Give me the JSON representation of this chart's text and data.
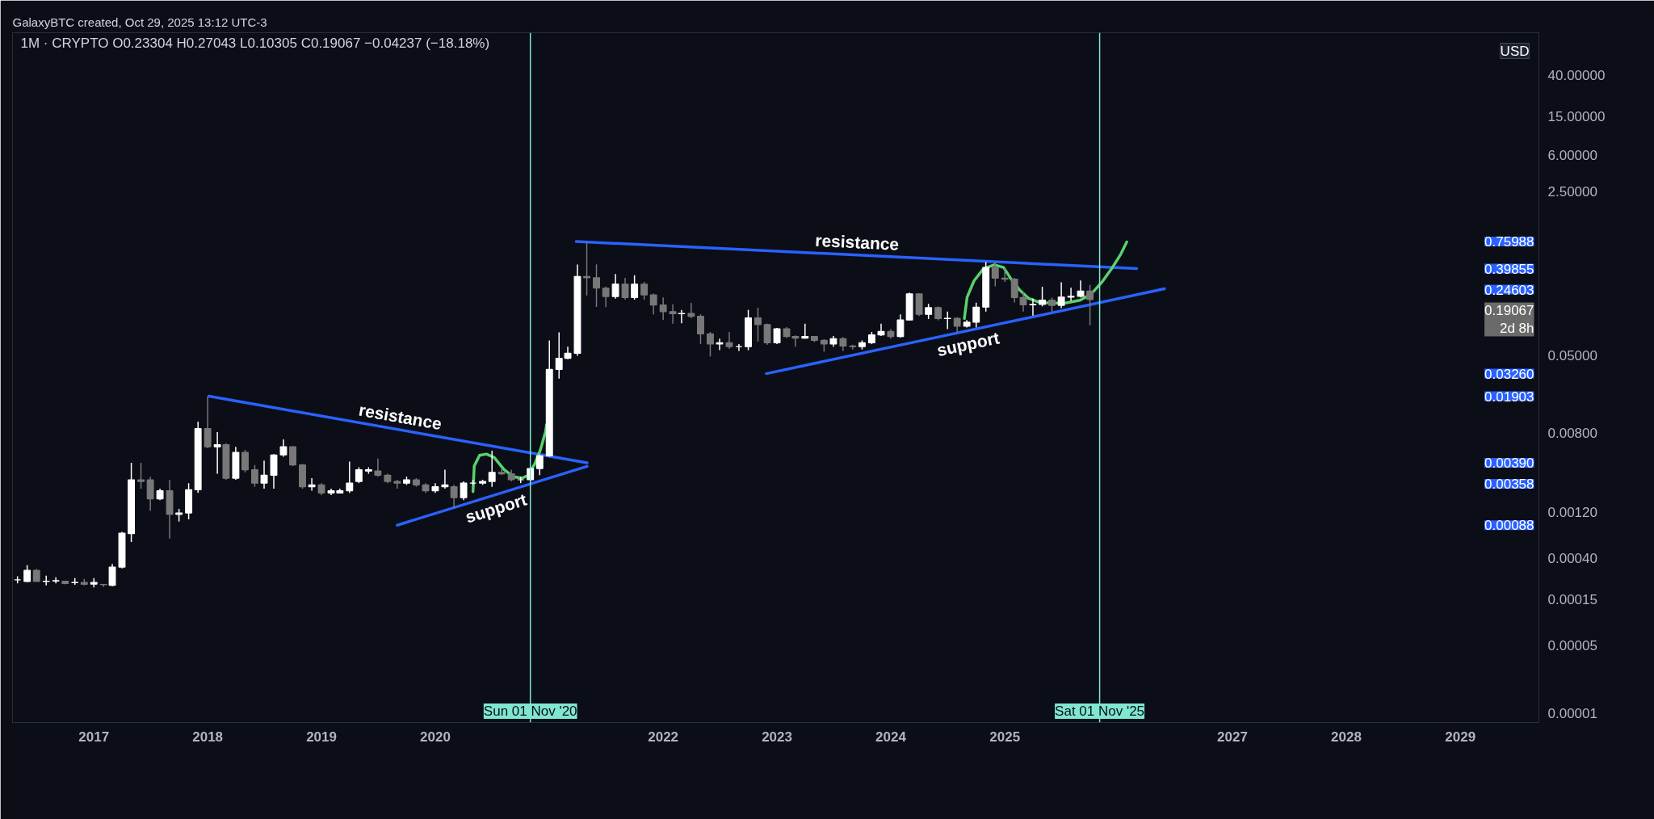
{
  "chart_data": {
    "type": "candlestick",
    "title": "1M · CRYPTO  O0.23304  H0.27043  L0.10305  C0.19067  −0.04237 (−18.18%)",
    "annotations": [
      "GalaxyBTC created, Oct 29, 2025 13:12 UTC-3",
      "USD",
      "0.75988",
      "0.39855",
      "0.24603",
      "0.19067\n2d 8h",
      "0.03260",
      "0.01903",
      "0.00390",
      "0.00358",
      "0.00088"
    ],
    "x": [
      "2016-05",
      "2016-06",
      "2016-07",
      "2016-08",
      "2016-09",
      "2016-10",
      "2016-11",
      "2016-12",
      "2017-01",
      "2017-02",
      "2017-03",
      "2017-04",
      "2017-05",
      "2017-06",
      "2017-07",
      "2017-08",
      "2017-09",
      "2017-10",
      "2017-11",
      "2017-12",
      "2018-01",
      "2018-02",
      "2018-03",
      "2018-04",
      "2018-05",
      "2018-06",
      "2018-07",
      "2018-08",
      "2018-09",
      "2018-10",
      "2018-11",
      "2018-12",
      "2019-01",
      "2019-02",
      "2019-03",
      "2019-04",
      "2019-05",
      "2019-06",
      "2019-07",
      "2019-08",
      "2019-09",
      "2019-10",
      "2019-11",
      "2019-12",
      "2020-01",
      "2020-02",
      "2020-03",
      "2020-04",
      "2020-05",
      "2020-06",
      "2020-07",
      "2020-08",
      "2020-09",
      "2020-10",
      "2020-11",
      "2020-12",
      "2021-01",
      "2021-02",
      "2021-03",
      "2021-04",
      "2021-05",
      "2021-06",
      "2021-07",
      "2021-08",
      "2021-09",
      "2021-10",
      "2021-11",
      "2021-12",
      "2022-01",
      "2022-02",
      "2022-03",
      "2022-04",
      "2022-05",
      "2022-06",
      "2022-07",
      "2022-08",
      "2022-09",
      "2022-10",
      "2022-11",
      "2022-12",
      "2023-01",
      "2023-02",
      "2023-03",
      "2023-04",
      "2023-05",
      "2023-06",
      "2023-07",
      "2023-08",
      "2023-09",
      "2023-10",
      "2023-11",
      "2023-12",
      "2024-01",
      "2024-02",
      "2024-03",
      "2024-04",
      "2024-05",
      "2024-06",
      "2024-07",
      "2024-08",
      "2024-09",
      "2024-10",
      "2024-11",
      "2024-12",
      "2025-01",
      "2025-02",
      "2025-03",
      "2025-04",
      "2025-05",
      "2025-06",
      "2025-07",
      "2025-08",
      "2025-09",
      "2025-10"
    ],
    "ohlc": [
      [
        0.00024,
        0.00026,
        0.00022,
        0.00024
      ],
      [
        0.00023,
        0.00034,
        0.000226,
        0.0003
      ],
      [
        0.0003,
        0.00031,
        0.00023,
        0.00023
      ],
      [
        0.00023,
        0.000265,
        0.00021,
        0.000232
      ],
      [
        0.000233,
        0.000255,
        0.00022,
        0.000235
      ],
      [
        0.000232,
        0.000235,
        0.000215,
        0.00022
      ],
      [
        0.000224,
        0.00025,
        0.000213,
        0.000225
      ],
      [
        0.000225,
        0.000245,
        0.00021,
        0.000215
      ],
      [
        0.000216,
        0.00025,
        0.0002,
        0.000225
      ],
      [
        0.000215,
        0.000217,
        0.000203,
        0.000213
      ],
      [
        0.00021,
        0.00035,
        0.000205,
        0.000325
      ],
      [
        0.000325,
        0.00075,
        0.000315,
        0.00073
      ],
      [
        0.00072,
        0.0039,
        0.00059,
        0.0026
      ],
      [
        0.0026,
        0.0039,
        0.0021,
        0.0025
      ],
      [
        0.0026,
        0.0028,
        0.00124,
        0.00165
      ],
      [
        0.00165,
        0.0021,
        0.0016,
        0.002
      ],
      [
        0.002,
        0.0026,
        0.00064,
        0.00114
      ],
      [
        0.00114,
        0.0013,
        0.00096,
        0.00118
      ],
      [
        0.00118,
        0.0024,
        0.00101,
        0.00205
      ],
      [
        0.00205,
        0.0104,
        0.0019,
        0.0088
      ],
      [
        0.0088,
        0.019,
        0.0055,
        0.0057
      ],
      [
        0.0057,
        0.0081,
        0.003,
        0.006
      ],
      [
        0.006,
        0.0062,
        0.0026,
        0.0027
      ],
      [
        0.0027,
        0.0057,
        0.0026,
        0.005
      ],
      [
        0.005,
        0.0053,
        0.0031,
        0.0033
      ],
      [
        0.0033,
        0.0037,
        0.0022,
        0.0024
      ],
      [
        0.0024,
        0.0041,
        0.0021,
        0.0029
      ],
      [
        0.0029,
        0.0048,
        0.0021,
        0.0047
      ],
      [
        0.0047,
        0.0068,
        0.0045,
        0.0057
      ],
      [
        0.0057,
        0.0058,
        0.0036,
        0.0037
      ],
      [
        0.0037,
        0.0038,
        0.0021,
        0.0022
      ],
      [
        0.0022,
        0.0027,
        0.002,
        0.0023
      ],
      [
        0.0023,
        0.0024,
        0.0018,
        0.0019
      ],
      [
        0.0019,
        0.0021,
        0.0018,
        0.002
      ],
      [
        0.0019,
        0.0021,
        0.0019,
        0.002
      ],
      [
        0.002,
        0.004,
        0.0019,
        0.0024
      ],
      [
        0.0025,
        0.0035,
        0.0024,
        0.0033
      ],
      [
        0.0032,
        0.0035,
        0.003,
        0.0033
      ],
      [
        0.0032,
        0.0043,
        0.0028,
        0.0029
      ],
      [
        0.0029,
        0.003,
        0.0024,
        0.0025
      ],
      [
        0.0025,
        0.0026,
        0.0021,
        0.0024
      ],
      [
        0.0024,
        0.0028,
        0.0023,
        0.0026
      ],
      [
        0.0026,
        0.0027,
        0.0022,
        0.0023
      ],
      [
        0.0023,
        0.0024,
        0.0019,
        0.002
      ],
      [
        0.002,
        0.0024,
        0.0019,
        0.0022
      ],
      [
        0.0022,
        0.0033,
        0.0021,
        0.0023
      ],
      [
        0.0022,
        0.0023,
        0.0013,
        0.0017
      ],
      [
        0.0017,
        0.0025,
        0.0016,
        0.0024
      ],
      [
        0.0024,
        0.0026,
        0.0023,
        0.0024
      ],
      [
        0.0024,
        0.0026,
        0.0023,
        0.0025
      ],
      [
        0.0025,
        0.0052,
        0.0022,
        0.0031
      ],
      [
        0.0031,
        0.0034,
        0.0029,
        0.003
      ],
      [
        0.003,
        0.0033,
        0.0025,
        0.0026
      ],
      [
        0.0026,
        0.0028,
        0.0024,
        0.0026
      ],
      [
        0.0026,
        0.0035,
        0.0025,
        0.0034
      ],
      [
        0.0034,
        0.0047,
        0.0029,
        0.0046
      ],
      [
        0.0046,
        0.072,
        0.0045,
        0.036
      ],
      [
        0.036,
        0.087,
        0.029,
        0.047
      ],
      [
        0.047,
        0.062,
        0.046,
        0.053
      ],
      [
        0.053,
        0.44,
        0.05,
        0.33
      ],
      [
        0.33,
        0.75,
        0.21,
        0.32
      ],
      [
        0.32,
        0.44,
        0.16,
        0.25
      ],
      [
        0.25,
        0.26,
        0.159,
        0.205
      ],
      [
        0.205,
        0.35,
        0.195,
        0.275
      ],
      [
        0.275,
        0.32,
        0.19,
        0.2
      ],
      [
        0.2,
        0.34,
        0.19,
        0.275
      ],
      [
        0.275,
        0.29,
        0.19,
        0.213
      ],
      [
        0.213,
        0.22,
        0.134,
        0.167
      ],
      [
        0.167,
        0.2,
        0.117,
        0.143
      ],
      [
        0.143,
        0.17,
        0.107,
        0.136
      ],
      [
        0.136,
        0.149,
        0.108,
        0.137
      ],
      [
        0.137,
        0.176,
        0.122,
        0.128
      ],
      [
        0.128,
        0.134,
        0.066,
        0.084
      ],
      [
        0.084,
        0.088,
        0.049,
        0.066
      ],
      [
        0.066,
        0.075,
        0.057,
        0.068
      ],
      [
        0.068,
        0.088,
        0.059,
        0.062
      ],
      [
        0.062,
        0.066,
        0.056,
        0.062
      ],
      [
        0.062,
        0.149,
        0.057,
        0.123
      ],
      [
        0.123,
        0.157,
        0.07,
        0.105
      ],
      [
        0.105,
        0.107,
        0.065,
        0.068
      ],
      [
        0.068,
        0.097,
        0.066,
        0.095
      ],
      [
        0.095,
        0.099,
        0.076,
        0.079
      ],
      [
        0.079,
        0.081,
        0.062,
        0.076
      ],
      [
        0.076,
        0.107,
        0.075,
        0.079
      ],
      [
        0.079,
        0.08,
        0.069,
        0.072
      ],
      [
        0.072,
        0.074,
        0.055,
        0.066
      ],
      [
        0.066,
        0.08,
        0.062,
        0.075
      ],
      [
        0.075,
        0.078,
        0.056,
        0.063
      ],
      [
        0.063,
        0.065,
        0.058,
        0.062
      ],
      [
        0.062,
        0.072,
        0.058,
        0.068
      ],
      [
        0.068,
        0.088,
        0.066,
        0.082
      ],
      [
        0.082,
        0.107,
        0.08,
        0.089
      ],
      [
        0.089,
        0.094,
        0.075,
        0.079
      ],
      [
        0.079,
        0.134,
        0.077,
        0.117
      ],
      [
        0.117,
        0.225,
        0.115,
        0.218
      ],
      [
        0.218,
        0.222,
        0.129,
        0.134
      ],
      [
        0.134,
        0.172,
        0.12,
        0.157
      ],
      [
        0.157,
        0.162,
        0.116,
        0.121
      ],
      [
        0.121,
        0.143,
        0.094,
        0.122
      ],
      [
        0.122,
        0.125,
        0.088,
        0.101
      ],
      [
        0.101,
        0.117,
        0.098,
        0.111
      ],
      [
        0.111,
        0.177,
        0.098,
        0.159
      ],
      [
        0.159,
        0.465,
        0.143,
        0.409
      ],
      [
        0.409,
        0.465,
        0.261,
        0.317
      ],
      [
        0.317,
        0.4,
        0.29,
        0.31
      ],
      [
        0.31,
        0.32,
        0.178,
        0.2
      ],
      [
        0.2,
        0.23,
        0.143,
        0.168
      ],
      [
        0.168,
        0.196,
        0.13,
        0.17
      ],
      [
        0.17,
        0.258,
        0.162,
        0.188
      ],
      [
        0.188,
        0.2,
        0.143,
        0.166
      ],
      [
        0.166,
        0.288,
        0.155,
        0.202
      ],
      [
        0.202,
        0.253,
        0.185,
        0.206
      ],
      [
        0.206,
        0.3,
        0.2,
        0.233
      ],
      [
        0.23304,
        0.27043,
        0.10305,
        0.19067
      ]
    ],
    "colors": [
      "#ffffff",
      "#ffffff",
      "#787878",
      "#ffffff",
      "#ffffff",
      "#787878",
      "#ffffff",
      "#787878",
      "#ffffff",
      "#787878",
      "#ffffff",
      "#ffffff",
      "#ffffff",
      "#787878",
      "#787878",
      "#ffffff",
      "#787878",
      "#ffffff",
      "#ffffff",
      "#ffffff",
      "#787878",
      "#ffffff",
      "#787878",
      "#ffffff",
      "#787878",
      "#787878",
      "#ffffff",
      "#ffffff",
      "#ffffff",
      "#787878",
      "#787878",
      "#ffffff",
      "#787878",
      "#ffffff",
      "#ffffff",
      "#ffffff",
      "#ffffff",
      "#ffffff",
      "#787878",
      "#787878",
      "#787878",
      "#ffffff",
      "#787878",
      "#787878",
      "#ffffff",
      "#ffffff",
      "#787878",
      "#ffffff",
      "#ffffff",
      "#ffffff",
      "#ffffff",
      "#787878",
      "#787878",
      "#ffffff",
      "#ffffff",
      "#ffffff",
      "#ffffff",
      "#ffffff",
      "#ffffff",
      "#ffffff",
      "#787878",
      "#787878",
      "#787878",
      "#ffffff",
      "#787878",
      "#ffffff",
      "#787878",
      "#787878",
      "#787878",
      "#787878",
      "#ffffff",
      "#787878",
      "#787878",
      "#787878",
      "#ffffff",
      "#787878",
      "#ffffff",
      "#ffffff",
      "#787878",
      "#787878",
      "#ffffff",
      "#787878",
      "#787878",
      "#ffffff",
      "#787878",
      "#787878",
      "#ffffff",
      "#787878",
      "#787878",
      "#ffffff",
      "#ffffff",
      "#ffffff",
      "#787878",
      "#ffffff",
      "#ffffff",
      "#787878",
      "#ffffff",
      "#787878",
      "#ffffff",
      "#787878",
      "#ffffff",
      "#ffffff",
      "#ffffff",
      "#787878",
      "#787878",
      "#787878",
      "#787878",
      "#ffffff",
      "#ffffff",
      "#787878",
      "#ffffff",
      "#ffffff",
      "#ffffff",
      "#787878"
    ],
    "series": [
      {
        "type": "line",
        "name": "resistance",
        "color": "#2962ff",
        "x": [
          "2018-01-05",
          "2021-05-02"
        ],
        "values": [
          0.01903,
          0.0039
        ]
      },
      {
        "type": "line",
        "name": "support",
        "color": "#2962ff",
        "x": [
          "2019-09-01",
          "2021-05-02"
        ],
        "values": [
          0.00088,
          0.00358
        ]
      },
      {
        "type": "line",
        "name": "resistance",
        "color": "#2962ff",
        "x": [
          "2021-03-28",
          "2026-02-28"
        ],
        "values": [
          0.75988,
          0.39855
        ]
      },
      {
        "type": "line",
        "name": "support",
        "color": "#2962ff",
        "x": [
          "2022-11-28",
          "2026-05-28"
        ],
        "values": [
          0.0326,
          0.24603
        ]
      },
      {
        "type": "line",
        "color": "#58d26a",
        "x": [
          "2020-05-01",
          "2020-05-05",
          "2020-05-22",
          "2020-06-13",
          "2020-07-08",
          "2020-08-08",
          "2020-09-08",
          "2020-10-04",
          "2020-10-25",
          "2020-11-16",
          "2020-12-03",
          "2020-12-20",
          "2020-12-23"
        ],
        "values": [
          0.00196,
          0.0036,
          0.00465,
          0.0048,
          0.00442,
          0.00333,
          0.00279,
          0.0027,
          0.00288,
          0.00384,
          0.00528,
          0.00826,
          0.0097
        ]
      },
      {
        "type": "line",
        "color": "#58d26a",
        "x": [
          "2024-08-24",
          "2024-09-02",
          "2024-09-24",
          "2024-10-24",
          "2024-11-28",
          "2024-12-28",
          "2025-01-19",
          "2025-02-18",
          "2025-03-18",
          "2025-04-22",
          "2025-06-04",
          "2025-07-17",
          "2025-08-30",
          "2025-10-04",
          "2025-11-08",
          "2025-12-12",
          "2026-01-08",
          "2026-01-27"
        ],
        "values": [
          0.121,
          0.202,
          0.297,
          0.396,
          0.436,
          0.409,
          0.317,
          0.238,
          0.196,
          0.178,
          0.175,
          0.176,
          0.187,
          0.216,
          0.288,
          0.409,
          0.563,
          0.752
        ]
      }
    ],
    "ref_lines": [
      {
        "axis": "x",
        "value": "2020-11-01",
        "label": "Sun 01 Nov '20",
        "color": "#7fe7cf"
      },
      {
        "axis": "x",
        "value": "2025-11-01",
        "label": "Sat 01 Nov '25",
        "color": "#7fe7cf"
      }
    ],
    "log": true,
    "xlim": [
      "2016-04-15",
      "2029-09-10"
    ],
    "xticks": [
      "2017",
      "2018",
      "2019",
      "2020",
      "2022",
      "2023",
      "2024",
      "2025",
      "2027",
      "2028",
      "2029"
    ],
    "ylim": [
      8e-06,
      110
    ],
    "yticks": [
      {
        "value": 40,
        "label": "40.00000"
      },
      {
        "value": 15,
        "label": "15.00000"
      },
      {
        "value": 6,
        "label": "6.00000"
      },
      {
        "value": 2.5,
        "label": "2.50000"
      },
      {
        "value": 0.05,
        "label": "0.05000"
      },
      {
        "value": 0.008,
        "label": "0.00800"
      },
      {
        "value": 0.0012,
        "label": "0.00120"
      },
      {
        "value": 0.0004,
        "label": "0.00040"
      },
      {
        "value": 0.00015,
        "label": "0.00015"
      },
      {
        "value": 5e-05,
        "label": "0.00005"
      },
      {
        "value": 1e-05,
        "label": "0.00001"
      }
    ]
  }
}
